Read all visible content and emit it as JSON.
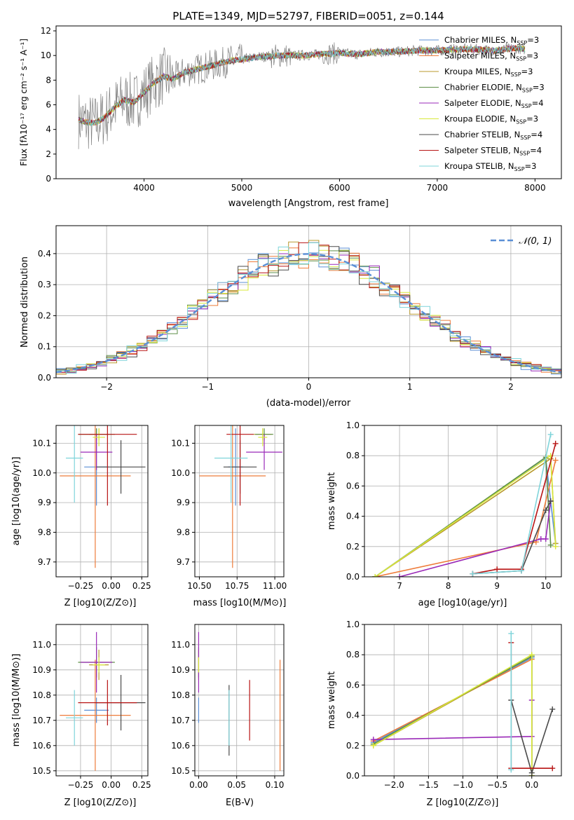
{
  "series_styles": [
    {
      "name": "Chabrier MILES",
      "nssp": "3",
      "color": "#5b8fd6"
    },
    {
      "name": "Salpeter MILES",
      "nssp": "3",
      "color": "#ee7c3a"
    },
    {
      "name": "Kroupa MILES",
      "nssp": "3",
      "color": "#b99a2e"
    },
    {
      "name": "Chabrier ELODIE",
      "nssp": "3",
      "color": "#5e8f47"
    },
    {
      "name": "Salpeter ELODIE",
      "nssp": "4",
      "color": "#9a2ab8"
    },
    {
      "name": "Kroupa ELODIE",
      "nssp": "3",
      "color": "#d8e83a"
    },
    {
      "name": "Chabrier STELIB",
      "nssp": "4",
      "color": "#4a4a4a"
    },
    {
      "name": "Salpeter STELIB",
      "nssp": "4",
      "color": "#b81414"
    },
    {
      "name": "Kroupa STELIB",
      "nssp": "3",
      "color": "#7fd4da"
    }
  ],
  "chart_data": [
    {
      "id": "spectrum",
      "type": "line",
      "title": "PLATE=1349, MJD=52797, FIBERID=0051, z=0.144",
      "xlabel": "wavelength [Angstrom, rest frame]",
      "ylabel": "Flux [fλ10⁻¹⁷ erg cm⁻² s⁻¹ A⁻¹]",
      "xlim": [
        3100,
        8270
      ],
      "ylim": [
        0,
        12.4
      ],
      "xticks": [
        4000,
        5000,
        6000,
        7000,
        8000
      ],
      "yticks": [
        0,
        2,
        4,
        6,
        8,
        10,
        12
      ],
      "data_color": "#808080",
      "legend_position": "top-right",
      "continuum": [
        [
          3330,
          4.8
        ],
        [
          3400,
          4.6
        ],
        [
          3500,
          4.5
        ],
        [
          3600,
          5.0
        ],
        [
          3700,
          5.8
        ],
        [
          3800,
          6.4
        ],
        [
          3900,
          6.2
        ],
        [
          4000,
          7.0
        ],
        [
          4100,
          7.8
        ],
        [
          4200,
          8.3
        ],
        [
          4300,
          8.1
        ],
        [
          4400,
          8.6
        ],
        [
          4500,
          8.8
        ],
        [
          4600,
          9.0
        ],
        [
          4700,
          9.2
        ],
        [
          4800,
          9.4
        ],
        [
          4900,
          9.6
        ],
        [
          5000,
          9.7
        ],
        [
          5200,
          9.9
        ],
        [
          5400,
          10.0
        ],
        [
          5600,
          10.0
        ],
        [
          5800,
          10.1
        ],
        [
          6000,
          10.2
        ],
        [
          6200,
          10.1
        ],
        [
          6400,
          10.3
        ],
        [
          6600,
          10.3
        ],
        [
          6800,
          10.4
        ],
        [
          7000,
          10.4
        ],
        [
          7200,
          10.5
        ],
        [
          7400,
          10.5
        ],
        [
          7600,
          10.4
        ],
        [
          7800,
          10.6
        ],
        [
          7900,
          10.5
        ]
      ]
    },
    {
      "id": "residuals",
      "type": "line",
      "xlabel": "(data-model)/error",
      "ylabel": "Normed distribution",
      "xlim": [
        -2.5,
        2.5
      ],
      "ylim": [
        0,
        0.49
      ],
      "xticks": [
        -2,
        -1,
        0,
        1,
        2
      ],
      "yticks": [
        0.0,
        0.1,
        0.2,
        0.3,
        0.4
      ],
      "grid": true,
      "legend": "𝒩(0, 1)",
      "legend_position": "top-right",
      "normal": {
        "mean": 0,
        "sigma": 1
      },
      "bin_width": 0.1
    },
    {
      "id": "age_vs_Z",
      "type": "scatter",
      "xlabel": "Z [log10(Z/Z⊙)]",
      "ylabel": "age [log10(age/yr)]",
      "xlim": [
        -0.45,
        0.3
      ],
      "ylim": [
        9.65,
        10.16
      ],
      "xticks": [
        -0.25,
        0.0,
        0.25
      ],
      "yticks": [
        9.7,
        9.8,
        9.9,
        10.0,
        10.1
      ],
      "grid": true,
      "points": [
        {
          "s": 0,
          "x": -0.12,
          "y": 10.02,
          "xerr": 0.1,
          "yerr": 0.13
        },
        {
          "s": 1,
          "x": -0.13,
          "y": 9.99,
          "xerr": 0.29,
          "yerr": 0.31
        },
        {
          "s": 2,
          "x": -0.1,
          "y": 10.13,
          "xerr": 0.08,
          "yerr": 0.02
        },
        {
          "s": 3,
          "x": -0.12,
          "y": 10.13,
          "xerr": 0.15,
          "yerr": 0.02
        },
        {
          "s": 4,
          "x": -0.12,
          "y": 10.07,
          "xerr": 0.13,
          "yerr": 0.06
        },
        {
          "s": 5,
          "x": -0.1,
          "y": 10.12,
          "xerr": 0.05,
          "yerr": 0.03
        },
        {
          "s": 6,
          "x": 0.08,
          "y": 10.02,
          "xerr": 0.2,
          "yerr": 0.09
        },
        {
          "s": 7,
          "x": -0.03,
          "y": 10.13,
          "xerr": 0.24,
          "yerr": 0.24
        },
        {
          "s": 8,
          "x": -0.3,
          "y": 10.05,
          "xerr": 0.07,
          "yerr": 0.15
        }
      ]
    },
    {
      "id": "age_vs_mass",
      "type": "scatter",
      "xlabel": "mass [log10(M/M⊙)]",
      "xlim": [
        10.47,
        11.06
      ],
      "ylim": [
        9.65,
        10.16
      ],
      "xticks": [
        10.5,
        10.75,
        11.0
      ],
      "yticks": [
        9.7,
        9.8,
        9.9,
        10.0,
        10.1
      ],
      "grid": true,
      "points": [
        {
          "s": 0,
          "x": 10.74,
          "y": 10.02,
          "xerr": 0.05,
          "yerr": 0.13
        },
        {
          "s": 1,
          "x": 10.72,
          "y": 9.99,
          "xerr": 0.22,
          "yerr": 0.31
        },
        {
          "s": 2,
          "x": 10.92,
          "y": 10.13,
          "xerr": 0.06,
          "yerr": 0.02
        },
        {
          "s": 3,
          "x": 10.93,
          "y": 10.13,
          "xerr": 0.06,
          "yerr": 0.02
        },
        {
          "s": 4,
          "x": 10.93,
          "y": 10.07,
          "xerr": 0.12,
          "yerr": 0.06
        },
        {
          "s": 5,
          "x": 10.92,
          "y": 10.12,
          "xerr": 0.03,
          "yerr": 0.03
        },
        {
          "s": 6,
          "x": 10.77,
          "y": 10.02,
          "xerr": 0.11,
          "yerr": 0.09
        },
        {
          "s": 7,
          "x": 10.77,
          "y": 10.13,
          "xerr": 0.09,
          "yerr": 0.24
        },
        {
          "s": 8,
          "x": 10.71,
          "y": 10.05,
          "xerr": 0.11,
          "yerr": 0.15
        }
      ]
    },
    {
      "id": "weight_vs_age",
      "type": "line",
      "xlabel": "age [log10(age/yr)]",
      "ylabel": "mass weight",
      "xlim": [
        6.28,
        10.32
      ],
      "ylim": [
        0,
        1
      ],
      "xticks": [
        7,
        8,
        9,
        10
      ],
      "yticks": [
        0.0,
        0.2,
        0.4,
        0.6,
        0.8,
        1.0
      ],
      "grid": true,
      "series": [
        {
          "s": 0,
          "x": [
            6.5,
            10.0,
            10.2
          ],
          "y": [
            0.0,
            0.78,
            0.22
          ]
        },
        {
          "s": 1,
          "x": [
            6.5,
            9.8,
            10.2
          ],
          "y": [
            0.0,
            0.23,
            0.77
          ]
        },
        {
          "s": 2,
          "x": [
            6.5,
            10.1,
            10.2
          ],
          "y": [
            0.0,
            0.78,
            0.22
          ]
        },
        {
          "s": 3,
          "x": [
            6.5,
            10.0,
            10.1
          ],
          "y": [
            0.0,
            0.79,
            0.21
          ]
        },
        {
          "s": 4,
          "x": [
            7.0,
            9.9,
            10.0,
            10.1
          ],
          "y": [
            0.0,
            0.25,
            0.25,
            0.5
          ]
        },
        {
          "s": 5,
          "x": [
            6.5,
            10.1,
            10.2
          ],
          "y": [
            0.0,
            0.8,
            0.2
          ]
        },
        {
          "s": 6,
          "x": [
            8.5,
            9.5,
            10.0,
            10.1
          ],
          "y": [
            0.02,
            0.04,
            0.44,
            0.5
          ]
        },
        {
          "s": 7,
          "x": [
            8.5,
            9.0,
            9.5,
            10.2
          ],
          "y": [
            0.02,
            0.05,
            0.05,
            0.88
          ]
        },
        {
          "s": 8,
          "x": [
            8.5,
            9.5,
            10.1
          ],
          "y": [
            0.02,
            0.04,
            0.94
          ]
        }
      ]
    },
    {
      "id": "mass_vs_Z",
      "type": "scatter",
      "xlabel": "Z [log10(Z/Z⊙)]",
      "ylabel": "mass [log10(M/M⊙)]",
      "xlim": [
        -0.45,
        0.3
      ],
      "ylim": [
        10.48,
        11.08
      ],
      "xticks": [
        -0.25,
        0.0,
        0.25
      ],
      "yticks": [
        10.5,
        10.6,
        10.7,
        10.8,
        10.9,
        11.0
      ],
      "grid": true,
      "points": [
        {
          "s": 0,
          "x": -0.12,
          "y": 10.74,
          "xerr": 0.1,
          "yerr": 0.05
        },
        {
          "s": 1,
          "x": -0.13,
          "y": 10.72,
          "xerr": 0.29,
          "yerr": 0.22
        },
        {
          "s": 2,
          "x": -0.1,
          "y": 10.92,
          "xerr": 0.08,
          "yerr": 0.06
        },
        {
          "s": 3,
          "x": -0.12,
          "y": 10.93,
          "xerr": 0.15,
          "yerr": 0.06
        },
        {
          "s": 4,
          "x": -0.12,
          "y": 10.93,
          "xerr": 0.13,
          "yerr": 0.12
        },
        {
          "s": 5,
          "x": -0.1,
          "y": 10.92,
          "xerr": 0.05,
          "yerr": 0.03
        },
        {
          "s": 6,
          "x": 0.08,
          "y": 10.77,
          "xerr": 0.2,
          "yerr": 0.11
        },
        {
          "s": 7,
          "x": -0.03,
          "y": 10.77,
          "xerr": 0.24,
          "yerr": 0.09
        },
        {
          "s": 8,
          "x": -0.3,
          "y": 10.71,
          "xerr": 0.07,
          "yerr": 0.11
        }
      ]
    },
    {
      "id": "mass_vs_ebv",
      "type": "scatter",
      "xlabel": "E(B-V)",
      "xlim": [
        -0.005,
        0.112
      ],
      "ylim": [
        10.48,
        11.08
      ],
      "xticks": [
        0.0,
        0.05,
        0.1
      ],
      "yticks": [
        10.5,
        10.6,
        10.7,
        10.8,
        10.9,
        11.0
      ],
      "grid": true,
      "points": [
        {
          "s": 0,
          "x": 0.0,
          "y": 10.74,
          "yerr": 0.05
        },
        {
          "s": 1,
          "x": 0.107,
          "y": 10.72,
          "yerr": 0.22
        },
        {
          "s": 2,
          "x": 0.0,
          "y": 10.92,
          "yerr": 0.06
        },
        {
          "s": 3,
          "x": 0.0,
          "y": 10.93,
          "yerr": 0.06
        },
        {
          "s": 4,
          "x": 0.0,
          "y": 10.93,
          "yerr": 0.12
        },
        {
          "s": 5,
          "x": 0.0,
          "y": 10.92,
          "yerr": 0.03
        },
        {
          "s": 6,
          "x": 0.04,
          "y": 10.7,
          "yerr": 0.14
        },
        {
          "s": 7,
          "x": 0.067,
          "y": 10.74,
          "yerr": 0.12
        },
        {
          "s": 8,
          "x": 0.04,
          "y": 10.71,
          "yerr": 0.11
        }
      ]
    },
    {
      "id": "weight_vs_Z",
      "type": "line",
      "xlabel": "Z [log10(Z/Z⊙)]",
      "ylabel": "mass weight",
      "xlim": [
        -2.43,
        0.43
      ],
      "ylim": [
        0,
        1
      ],
      "xticks": [
        -2.0,
        -1.5,
        -1.0,
        -0.5,
        0.0
      ],
      "yticks": [
        0.0,
        0.2,
        0.4,
        0.6,
        0.8,
        1.0
      ],
      "grid": true,
      "series": [
        {
          "s": 0,
          "x": [
            -2.3,
            0.0,
            0.0
          ],
          "y": [
            0.22,
            0.78,
            0.0
          ]
        },
        {
          "s": 1,
          "x": [
            -2.3,
            0.0,
            0.0
          ],
          "y": [
            0.23,
            0.77,
            0.0
          ]
        },
        {
          "s": 2,
          "x": [
            -2.3,
            0.0,
            0.0
          ],
          "y": [
            0.2,
            0.79,
            0.0
          ]
        },
        {
          "s": 3,
          "x": [
            -2.3,
            0.0,
            0.0
          ],
          "y": [
            0.21,
            0.79,
            0.0
          ]
        },
        {
          "s": 4,
          "x": [
            -2.3,
            0.0,
            0.0
          ],
          "y": [
            0.24,
            0.26,
            0.5
          ]
        },
        {
          "s": 5,
          "x": [
            -2.3,
            0.0,
            0.0
          ],
          "y": [
            0.2,
            0.8,
            0.0
          ]
        },
        {
          "s": 6,
          "x": [
            -0.3,
            0.0,
            0.3
          ],
          "y": [
            0.5,
            0.02,
            0.44
          ]
        },
        {
          "s": 7,
          "x": [
            -0.3,
            -0.3,
            0.3
          ],
          "y": [
            0.88,
            0.05,
            0.05
          ]
        },
        {
          "s": 8,
          "x": [
            -0.3,
            -0.3
          ],
          "y": [
            0.94,
            0.04
          ]
        }
      ]
    }
  ]
}
